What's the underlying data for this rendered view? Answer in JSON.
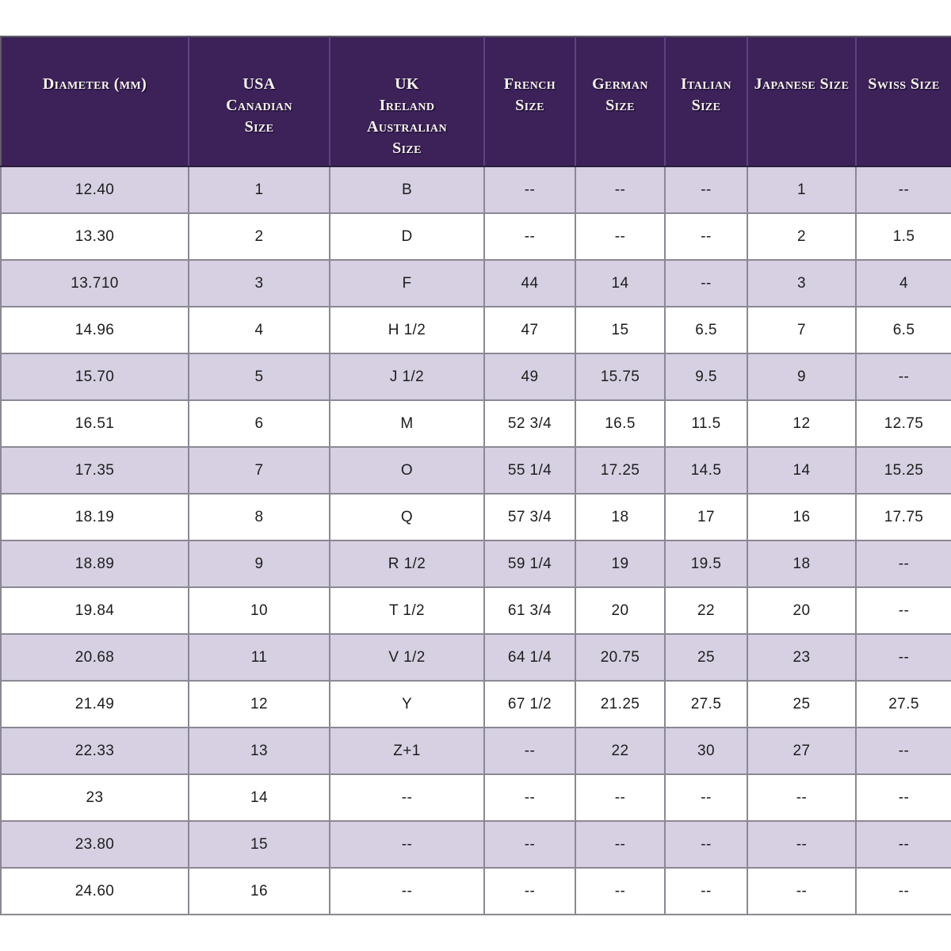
{
  "colors": {
    "header_bg": "#3c2259",
    "header_text": "#f8f5ef",
    "header_divider": "#5b4480",
    "row_alt_bg": "#d6d0e2",
    "row_bg": "#ffffff",
    "grid_border": "#8b8894",
    "cell_text": "#1d1d1d"
  },
  "chart_data": {
    "type": "table",
    "empty_marker": "--",
    "columns": [
      "Diameter (mm)",
      "USA\nCanadian\nSize",
      "UK\nIreland\nAustralian\nSize",
      "French\nSize",
      "German\nSize",
      "Italian\nSize",
      "Japanese Size",
      "Swiss Size"
    ],
    "rows": [
      [
        "12.40",
        "1",
        "B",
        "--",
        "--",
        "--",
        "1",
        "--"
      ],
      [
        "13.30",
        "2",
        "D",
        "--",
        "--",
        "--",
        "2",
        "1.5"
      ],
      [
        "13.710",
        "3",
        "F",
        "44",
        "14",
        "--",
        "3",
        "4"
      ],
      [
        "14.96",
        "4",
        "H 1/2",
        "47",
        "15",
        "6.5",
        "7",
        "6.5"
      ],
      [
        "15.70",
        "5",
        "J 1/2",
        "49",
        "15.75",
        "9.5",
        "9",
        "--"
      ],
      [
        "16.51",
        "6",
        "M",
        "52 3/4",
        "16.5",
        "11.5",
        "12",
        "12.75"
      ],
      [
        "17.35",
        "7",
        "O",
        "55 1/4",
        "17.25",
        "14.5",
        "14",
        "15.25"
      ],
      [
        "18.19",
        "8",
        "Q",
        "57 3/4",
        "18",
        "17",
        "16",
        "17.75"
      ],
      [
        "18.89",
        "9",
        "R 1/2",
        "59 1/4",
        "19",
        "19.5",
        "18",
        "--"
      ],
      [
        "19.84",
        "10",
        "T 1/2",
        "61 3/4",
        "20",
        "22",
        "20",
        "--"
      ],
      [
        "20.68",
        "11",
        "V 1/2",
        "64 1/4",
        "20.75",
        "25",
        "23",
        "--"
      ],
      [
        "21.49",
        "12",
        "Y",
        "67 1/2",
        "21.25",
        "27.5",
        "25",
        "27.5"
      ],
      [
        "22.33",
        "13",
        "Z+1",
        "--",
        "22",
        "30",
        "27",
        "--"
      ],
      [
        "23",
        "14",
        "--",
        "--",
        "--",
        "--",
        "--",
        "--"
      ],
      [
        "23.80",
        "15",
        "--",
        "--",
        "--",
        "--",
        "--",
        "--"
      ],
      [
        "24.60",
        "16",
        "--",
        "--",
        "--",
        "--",
        "--",
        "--"
      ]
    ]
  }
}
